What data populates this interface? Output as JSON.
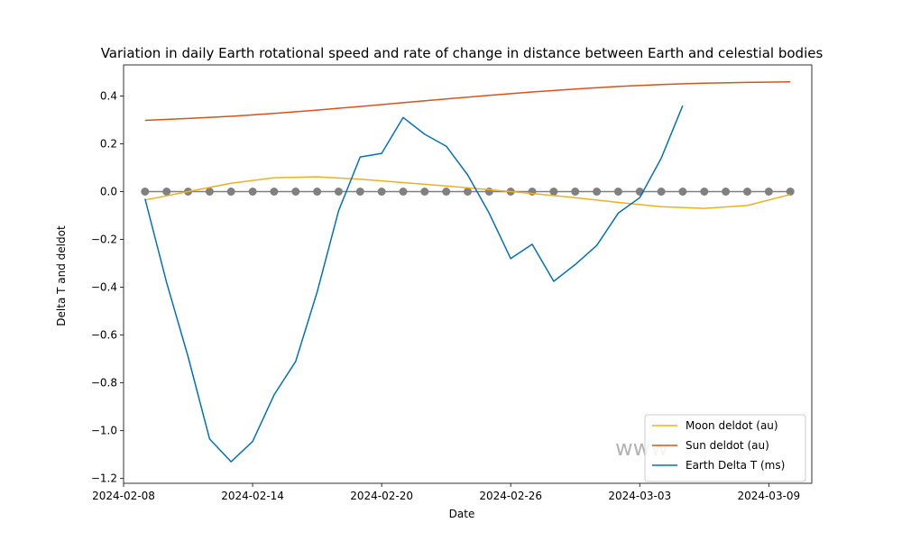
{
  "chart_data": {
    "type": "line",
    "title": "Variation in daily Earth rotational speed and rate of change in distance between Earth and celestial bodies",
    "xlabel": "Date",
    "ylabel": "Delta T and deldot",
    "x_ticks": [
      "2024-02-08",
      "2024-02-14",
      "2024-02-20",
      "2024-02-26",
      "2024-03-03",
      "2024-03-09"
    ],
    "y_ticks": [
      "−1.2",
      "−1.0",
      "−0.8",
      "−0.6",
      "−0.4",
      "−0.2",
      "0.0",
      "0.2",
      "0.4"
    ],
    "xlim": [
      "2024-02-08",
      "2024-03-11"
    ],
    "ylim": [
      -1.22,
      0.53
    ],
    "legend_position": "lower-right",
    "watermark": "www",
    "zero_markers": {
      "dates": [
        "2024-02-09",
        "2024-02-10",
        "2024-02-11",
        "2024-02-12",
        "2024-02-13",
        "2024-02-14",
        "2024-02-15",
        "2024-02-16",
        "2024-02-17",
        "2024-02-18",
        "2024-02-19",
        "2024-02-20",
        "2024-02-21",
        "2024-02-22",
        "2024-02-23",
        "2024-02-24",
        "2024-02-25",
        "2024-02-26",
        "2024-02-27",
        "2024-02-28",
        "2024-02-29",
        "2024-03-01",
        "2024-03-02",
        "2024-03-03",
        "2024-03-04",
        "2024-03-05",
        "2024-03-06",
        "2024-03-07",
        "2024-03-08",
        "2024-03-09",
        "2024-03-10"
      ],
      "value": 0.0,
      "color": "#808080"
    },
    "series": [
      {
        "name": "Moon deldot (au)",
        "color": "#EDB120",
        "x": [
          "2024-02-09",
          "2024-02-11",
          "2024-02-13",
          "2024-02-15",
          "2024-02-17",
          "2024-02-19",
          "2024-02-21",
          "2024-02-23",
          "2024-02-25",
          "2024-02-27",
          "2024-02-29",
          "2024-03-02",
          "2024-03-04",
          "2024-03-06",
          "2024-03-08",
          "2024-03-10"
        ],
        "y": [
          -0.035,
          0.0,
          0.035,
          0.058,
          0.062,
          0.052,
          0.038,
          0.024,
          0.008,
          -0.008,
          -0.025,
          -0.045,
          -0.063,
          -0.07,
          -0.058,
          -0.012
        ]
      },
      {
        "name": "Sun deldot (au)",
        "color": "#D95319",
        "x": [
          "2024-02-09",
          "2024-02-11",
          "2024-02-13",
          "2024-02-15",
          "2024-02-17",
          "2024-02-19",
          "2024-02-21",
          "2024-02-23",
          "2024-02-25",
          "2024-02-27",
          "2024-02-29",
          "2024-03-02",
          "2024-03-04",
          "2024-03-06",
          "2024-03-08",
          "2024-03-10"
        ],
        "y": [
          0.298,
          0.306,
          0.315,
          0.327,
          0.341,
          0.356,
          0.372,
          0.388,
          0.403,
          0.417,
          0.429,
          0.44,
          0.448,
          0.454,
          0.457,
          0.459
        ]
      },
      {
        "name": "Earth Delta T (ms)",
        "color": "#0072BD",
        "x": [
          "2024-02-09",
          "2024-02-10",
          "2024-02-11",
          "2024-02-12",
          "2024-02-13",
          "2024-02-14",
          "2024-02-15",
          "2024-02-16",
          "2024-02-17",
          "2024-02-18",
          "2024-02-19",
          "2024-02-20",
          "2024-02-21",
          "2024-02-22",
          "2024-02-23",
          "2024-02-24",
          "2024-02-25",
          "2024-02-26",
          "2024-02-27",
          "2024-02-28",
          "2024-02-29",
          "2024-03-01",
          "2024-03-02",
          "2024-03-03",
          "2024-03-04",
          "2024-03-05"
        ],
        "y": [
          -0.03,
          -0.38,
          -0.69,
          -1.035,
          -1.13,
          -1.045,
          -0.85,
          -0.71,
          -0.42,
          -0.08,
          0.145,
          0.16,
          0.31,
          0.24,
          0.19,
          0.07,
          -0.09,
          -0.28,
          -0.22,
          -0.375,
          -0.305,
          -0.225,
          -0.09,
          -0.025,
          0.14,
          0.36
        ]
      }
    ]
  }
}
